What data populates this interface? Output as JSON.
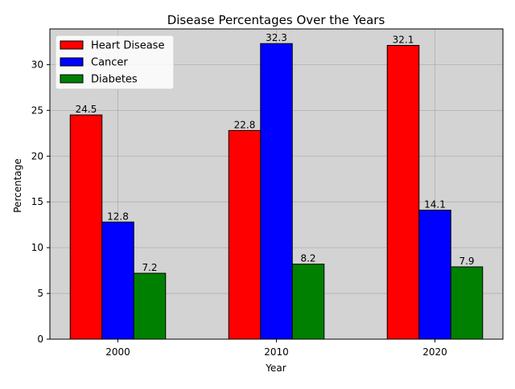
{
  "chart_data": {
    "type": "bar",
    "title": "Disease Percentages Over the Years",
    "xlabel": "Year",
    "ylabel": "Percentage",
    "categories": [
      "2000",
      "2010",
      "2020"
    ],
    "series": [
      {
        "name": "Heart Disease",
        "color": "#ff0000",
        "values": [
          24.5,
          22.8,
          32.1
        ]
      },
      {
        "name": "Cancer",
        "color": "#0000ff",
        "values": [
          12.8,
          32.3,
          14.1
        ]
      },
      {
        "name": "Diabetes",
        "color": "#008000",
        "values": [
          7.2,
          8.2,
          7.9
        ]
      }
    ],
    "ylim": [
      0,
      33.9
    ],
    "yticks": [
      0,
      5,
      10,
      15,
      20,
      25,
      30
    ],
    "grid": true,
    "legend_position": "top-left",
    "plot_background": "#d3d3d3"
  }
}
